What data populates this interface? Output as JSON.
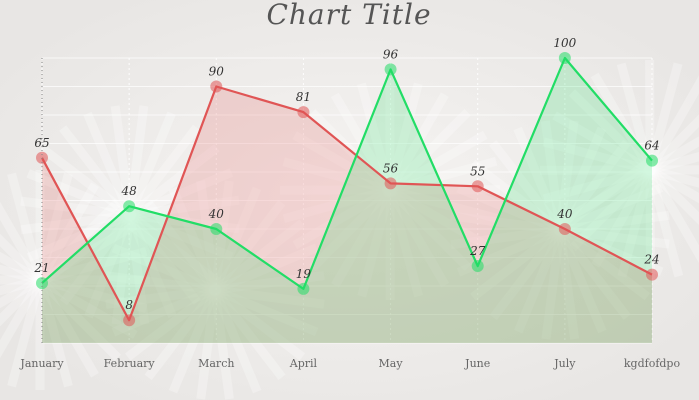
{
  "chart_data": {
    "type": "line",
    "title": "Chart Title",
    "xlabel": "",
    "ylabel": "",
    "categories": [
      "January",
      "February",
      "March",
      "April",
      "May",
      "June",
      "July",
      "kgdfofdpo"
    ],
    "ylim": [
      0,
      100
    ],
    "grid": true,
    "legend": "none",
    "series": [
      {
        "values": [
          65,
          8,
          90,
          81,
          56,
          55,
          40,
          24
        ],
        "color": "#e05555"
      },
      {
        "values": [
          21,
          48,
          40,
          19,
          96,
          27,
          100,
          64
        ],
        "color": "#22dd66"
      }
    ]
  }
}
